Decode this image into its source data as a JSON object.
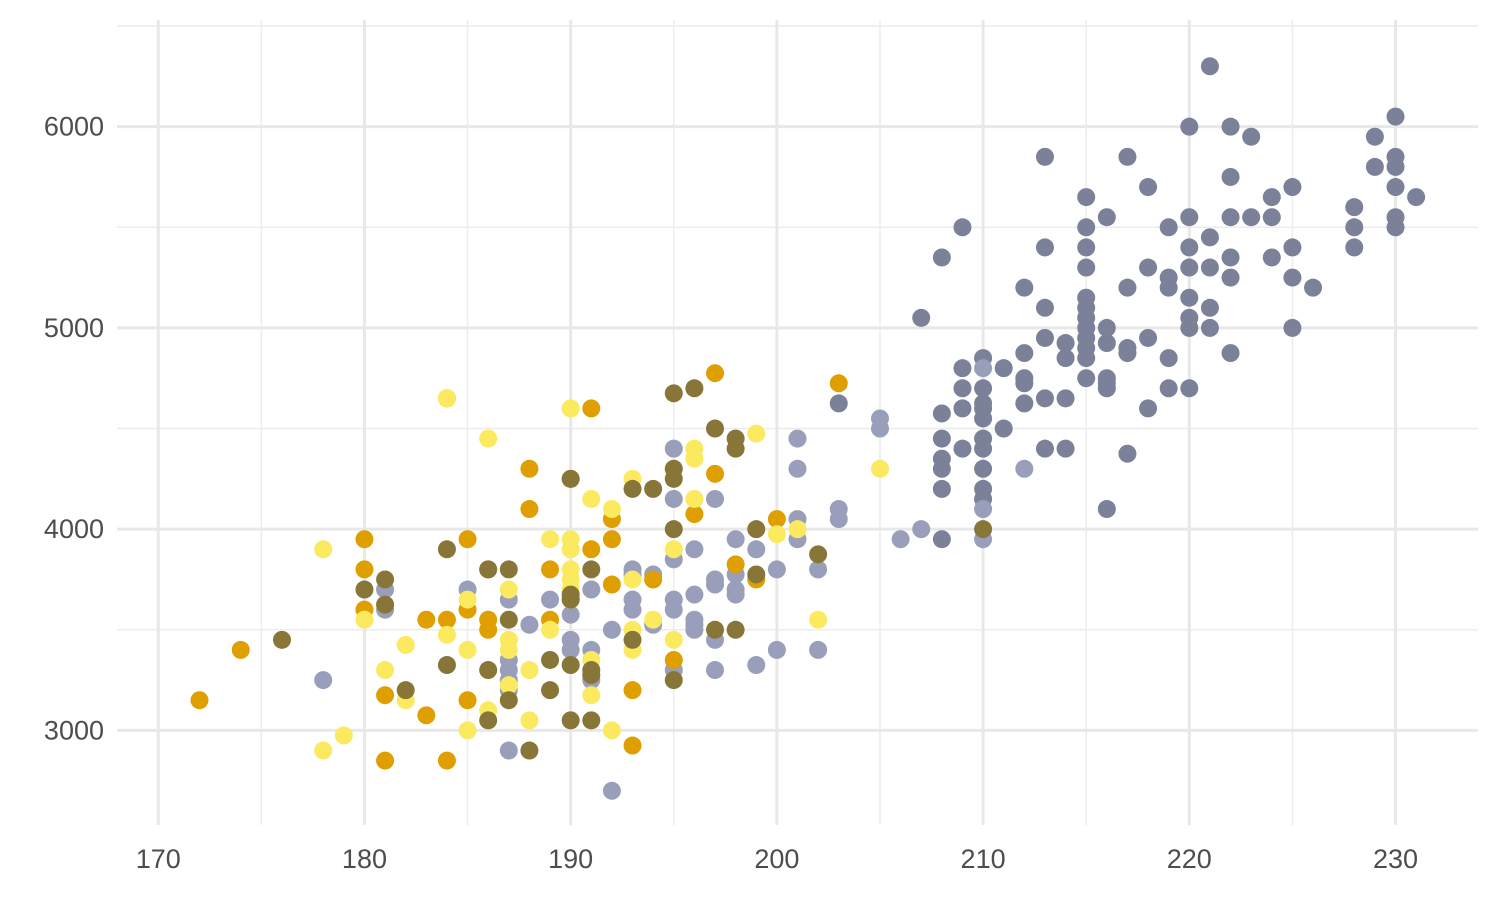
{
  "chart_data": {
    "type": "scatter",
    "title": "",
    "xlabel": "",
    "ylabel": "",
    "xlim": [
      168,
      234
    ],
    "ylim": [
      2530,
      6530
    ],
    "x_ticks": [
      170,
      180,
      190,
      200,
      210,
      220,
      230
    ],
    "y_ticks": [
      3000,
      4000,
      5000,
      6000
    ],
    "grid": true,
    "legend": "none",
    "colors": [
      "#7a8199",
      "#999fba",
      "#e09f00",
      "#fbe95f",
      "#877638"
    ],
    "series": [
      {
        "color": "#7a8199",
        "points": [
          [
            221,
            6300
          ],
          [
            230,
            6050
          ],
          [
            220,
            6000
          ],
          [
            222,
            6000
          ],
          [
            223,
            5950
          ],
          [
            229,
            5950
          ],
          [
            213,
            5850
          ],
          [
            217,
            5850
          ],
          [
            230,
            5850
          ],
          [
            222,
            5750
          ],
          [
            229,
            5800
          ],
          [
            230,
            5800
          ],
          [
            218,
            5700
          ],
          [
            225,
            5700
          ],
          [
            230,
            5700
          ],
          [
            215,
            5650
          ],
          [
            224,
            5650
          ],
          [
            231,
            5650
          ],
          [
            228,
            5600
          ],
          [
            216,
            5550
          ],
          [
            220,
            5550
          ],
          [
            222,
            5550
          ],
          [
            223,
            5550
          ],
          [
            224,
            5550
          ],
          [
            230,
            5550
          ],
          [
            209,
            5500
          ],
          [
            215,
            5500
          ],
          [
            219,
            5500
          ],
          [
            228,
            5500
          ],
          [
            230,
            5500
          ],
          [
            221,
            5450
          ],
          [
            213,
            5400
          ],
          [
            215,
            5400
          ],
          [
            220,
            5400
          ],
          [
            225,
            5400
          ],
          [
            228,
            5400
          ],
          [
            208,
            5350
          ],
          [
            222,
            5350
          ],
          [
            224,
            5350
          ],
          [
            215,
            5300
          ],
          [
            218,
            5300
          ],
          [
            220,
            5300
          ],
          [
            221,
            5300
          ],
          [
            219,
            5250
          ],
          [
            222,
            5250
          ],
          [
            225,
            5250
          ],
          [
            212,
            5200
          ],
          [
            217,
            5200
          ],
          [
            219,
            5200
          ],
          [
            226,
            5200
          ],
          [
            215,
            5150
          ],
          [
            220,
            5150
          ],
          [
            213,
            5100
          ],
          [
            215,
            5100
          ],
          [
            221,
            5100
          ],
          [
            207,
            5050
          ],
          [
            215,
            5050
          ],
          [
            220,
            5050
          ],
          [
            215,
            5000
          ],
          [
            216,
            5000
          ],
          [
            220,
            5000
          ],
          [
            221,
            5000
          ],
          [
            225,
            5000
          ],
          [
            213,
            4950
          ],
          [
            215,
            4950
          ],
          [
            218,
            4950
          ],
          [
            214,
            4925
          ],
          [
            216,
            4925
          ],
          [
            215,
            4900
          ],
          [
            217,
            4900
          ],
          [
            212,
            4875
          ],
          [
            217,
            4875
          ],
          [
            222,
            4875
          ],
          [
            210,
            4850
          ],
          [
            214,
            4850
          ],
          [
            215,
            4850
          ],
          [
            219,
            4850
          ],
          [
            209,
            4800
          ],
          [
            211,
            4800
          ],
          [
            215,
            4750
          ],
          [
            216,
            4750
          ],
          [
            212,
            4750
          ],
          [
            212,
            4725
          ],
          [
            216,
            4725
          ],
          [
            209,
            4700
          ],
          [
            210,
            4700
          ],
          [
            216,
            4700
          ],
          [
            219,
            4700
          ],
          [
            220,
            4700
          ],
          [
            213,
            4650
          ],
          [
            214,
            4650
          ],
          [
            203,
            4625
          ],
          [
            210,
            4625
          ],
          [
            212,
            4625
          ],
          [
            209,
            4600
          ],
          [
            210,
            4600
          ],
          [
            218,
            4600
          ],
          [
            208,
            4575
          ],
          [
            210,
            4550
          ],
          [
            211,
            4500
          ],
          [
            208,
            4450
          ],
          [
            210,
            4450
          ],
          [
            210,
            4400
          ],
          [
            209,
            4400
          ],
          [
            213,
            4400
          ],
          [
            214,
            4400
          ],
          [
            217,
            4375
          ],
          [
            208,
            4350
          ],
          [
            208,
            4300
          ],
          [
            210,
            4300
          ],
          [
            208,
            4200
          ],
          [
            210,
            4200
          ],
          [
            210,
            4150
          ],
          [
            216,
            4100
          ],
          [
            208,
            3950
          ]
        ]
      },
      {
        "color": "#999fba",
        "points": [
          [
            210,
            4800
          ],
          [
            205,
            4550
          ],
          [
            205,
            4500
          ],
          [
            201,
            4450
          ],
          [
            195,
            4400
          ],
          [
            201,
            4300
          ],
          [
            212,
            4300
          ],
          [
            197,
            4150
          ],
          [
            195,
            4150
          ],
          [
            210,
            4100
          ],
          [
            203,
            4100
          ],
          [
            201,
            4050
          ],
          [
            203,
            4050
          ],
          [
            207,
            4000
          ],
          [
            201,
            3950
          ],
          [
            206,
            3950
          ],
          [
            210,
            3950
          ],
          [
            198,
            3950
          ],
          [
            196,
            3900
          ],
          [
            199,
            3900
          ],
          [
            195,
            3850
          ],
          [
            193,
            3800
          ],
          [
            200,
            3800
          ],
          [
            202,
            3800
          ],
          [
            194,
            3775
          ],
          [
            197,
            3750
          ],
          [
            193,
            3775
          ],
          [
            198,
            3775
          ],
          [
            197,
            3725
          ],
          [
            198,
            3700
          ],
          [
            181,
            3700
          ],
          [
            185,
            3700
          ],
          [
            191,
            3700
          ],
          [
            196,
            3675
          ],
          [
            198,
            3675
          ],
          [
            193,
            3650
          ],
          [
            187,
            3650
          ],
          [
            189,
            3650
          ],
          [
            195,
            3650
          ],
          [
            181,
            3600
          ],
          [
            193,
            3600
          ],
          [
            195,
            3600
          ],
          [
            190,
            3575
          ],
          [
            196,
            3550
          ],
          [
            196,
            3525
          ],
          [
            188,
            3525
          ],
          [
            194,
            3525
          ],
          [
            192,
            3500
          ],
          [
            196,
            3500
          ],
          [
            197,
            3450
          ],
          [
            190,
            3450
          ],
          [
            191,
            3400
          ],
          [
            187,
            3350
          ],
          [
            190,
            3400
          ],
          [
            200,
            3400
          ],
          [
            202,
            3400
          ],
          [
            199,
            3325
          ],
          [
            195,
            3300
          ],
          [
            197,
            3300
          ],
          [
            187,
            3300
          ],
          [
            178,
            3250
          ],
          [
            187,
            3250
          ],
          [
            191,
            3250
          ],
          [
            187,
            3200
          ],
          [
            187,
            2900
          ],
          [
            192,
            2700
          ]
        ]
      },
      {
        "color": "#e09f00",
        "points": [
          [
            197,
            4775
          ],
          [
            203,
            4725
          ],
          [
            184,
            4650
          ],
          [
            191,
            4600
          ],
          [
            188,
            4300
          ],
          [
            197,
            4275
          ],
          [
            190,
            4250
          ],
          [
            188,
            4100
          ],
          [
            196,
            4075
          ],
          [
            200,
            4050
          ],
          [
            192,
            4050
          ],
          [
            180,
            3950
          ],
          [
            185,
            3950
          ],
          [
            192,
            3950
          ],
          [
            191,
            3900
          ],
          [
            180,
            3800
          ],
          [
            186,
            3800
          ],
          [
            189,
            3800
          ],
          [
            198,
            3825
          ],
          [
            194,
            3750
          ],
          [
            199,
            3750
          ],
          [
            192,
            3725
          ],
          [
            190,
            3650
          ],
          [
            180,
            3600
          ],
          [
            185,
            3600
          ],
          [
            183,
            3550
          ],
          [
            184,
            3550
          ],
          [
            186,
            3550
          ],
          [
            189,
            3550
          ],
          [
            186,
            3500
          ],
          [
            174,
            3400
          ],
          [
            195,
            3350
          ],
          [
            193,
            3200
          ],
          [
            181,
            3175
          ],
          [
            185,
            3150
          ],
          [
            172,
            3150
          ],
          [
            183,
            3075
          ],
          [
            193,
            2925
          ],
          [
            181,
            2850
          ],
          [
            184,
            2850
          ]
        ]
      },
      {
        "color": "#fbe95f",
        "points": [
          [
            184,
            4650
          ],
          [
            190,
            4600
          ],
          [
            199,
            4475
          ],
          [
            186,
            4450
          ],
          [
            196,
            4400
          ],
          [
            196,
            4350
          ],
          [
            190,
            4250
          ],
          [
            193,
            4250
          ],
          [
            191,
            4150
          ],
          [
            196,
            4150
          ],
          [
            192,
            4100
          ],
          [
            195,
            4300
          ],
          [
            205,
            4300
          ],
          [
            189,
            3950
          ],
          [
            190,
            3950
          ],
          [
            200,
            3975
          ],
          [
            201,
            4000
          ],
          [
            178,
            3900
          ],
          [
            190,
            3900
          ],
          [
            195,
            3900
          ],
          [
            190,
            3800
          ],
          [
            190,
            3750
          ],
          [
            193,
            3750
          ],
          [
            190,
            3700
          ],
          [
            187,
            3700
          ],
          [
            190,
            3650
          ],
          [
            185,
            3650
          ],
          [
            180,
            3550
          ],
          [
            194,
            3550
          ],
          [
            202,
            3550
          ],
          [
            189,
            3500
          ],
          [
            193,
            3500
          ],
          [
            184,
            3475
          ],
          [
            187,
            3450
          ],
          [
            195,
            3450
          ],
          [
            187,
            3400
          ],
          [
            182,
            3425
          ],
          [
            185,
            3400
          ],
          [
            193,
            3400
          ],
          [
            191,
            3350
          ],
          [
            181,
            3300
          ],
          [
            188,
            3300
          ],
          [
            187,
            3225
          ],
          [
            191,
            3175
          ],
          [
            182,
            3150
          ],
          [
            186,
            3100
          ],
          [
            188,
            3050
          ],
          [
            185,
            3000
          ],
          [
            192,
            3000
          ],
          [
            179,
            2975
          ],
          [
            178,
            2900
          ]
        ]
      },
      {
        "color": "#877638",
        "points": [
          [
            196,
            4700
          ],
          [
            195,
            4675
          ],
          [
            197,
            4500
          ],
          [
            198,
            4450
          ],
          [
            198,
            4400
          ],
          [
            195,
            4300
          ],
          [
            195,
            4250
          ],
          [
            194,
            4200
          ],
          [
            193,
            4200
          ],
          [
            190,
            4250
          ],
          [
            195,
            4000
          ],
          [
            199,
            4000
          ],
          [
            210,
            4000
          ],
          [
            202,
            3875
          ],
          [
            184,
            3900
          ],
          [
            186,
            3800
          ],
          [
            187,
            3800
          ],
          [
            191,
            3800
          ],
          [
            199,
            3775
          ],
          [
            181,
            3750
          ],
          [
            180,
            3700
          ],
          [
            190,
            3675
          ],
          [
            190,
            3650
          ],
          [
            181,
            3625
          ],
          [
            187,
            3550
          ],
          [
            197,
            3500
          ],
          [
            198,
            3500
          ],
          [
            193,
            3450
          ],
          [
            176,
            3450
          ],
          [
            189,
            3350
          ],
          [
            190,
            3325
          ],
          [
            184,
            3325
          ],
          [
            186,
            3300
          ],
          [
            191,
            3300
          ],
          [
            191,
            3275
          ],
          [
            195,
            3250
          ],
          [
            182,
            3200
          ],
          [
            189,
            3200
          ],
          [
            187,
            3150
          ],
          [
            186,
            3050
          ],
          [
            190,
            3050
          ],
          [
            191,
            3050
          ],
          [
            188,
            2900
          ]
        ]
      }
    ]
  }
}
